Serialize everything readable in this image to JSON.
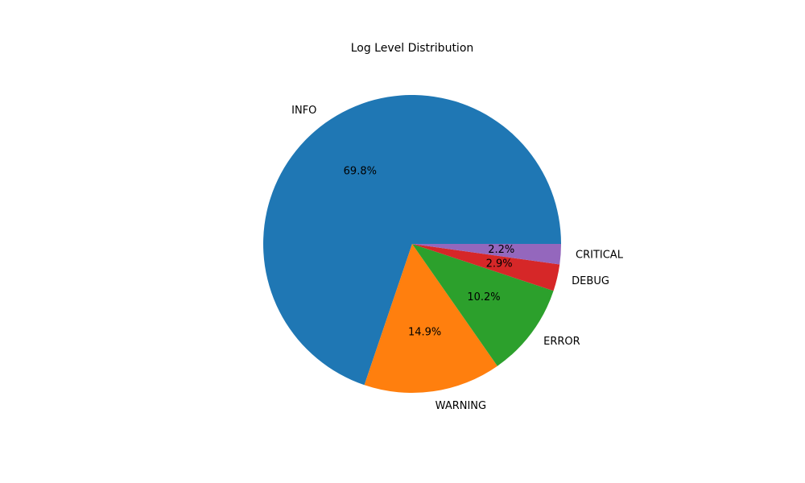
{
  "chart_data": {
    "type": "pie",
    "title": "Log Level Distribution",
    "start_angle_deg": 0,
    "direction": "counterclockwise",
    "slices": [
      {
        "label": "INFO",
        "value": 69.8,
        "pct_label": "69.8%",
        "color": "#1f77b4"
      },
      {
        "label": "WARNING",
        "value": 14.9,
        "pct_label": "14.9%",
        "color": "#ff7f0e"
      },
      {
        "label": "ERROR",
        "value": 10.2,
        "pct_label": "10.2%",
        "color": "#2ca02c"
      },
      {
        "label": "DEBUG",
        "value": 2.9,
        "pct_label": "2.9%",
        "color": "#d62728"
      },
      {
        "label": "CRITICAL",
        "value": 2.2,
        "pct_label": "2.2%",
        "color": "#9467bd"
      }
    ]
  }
}
